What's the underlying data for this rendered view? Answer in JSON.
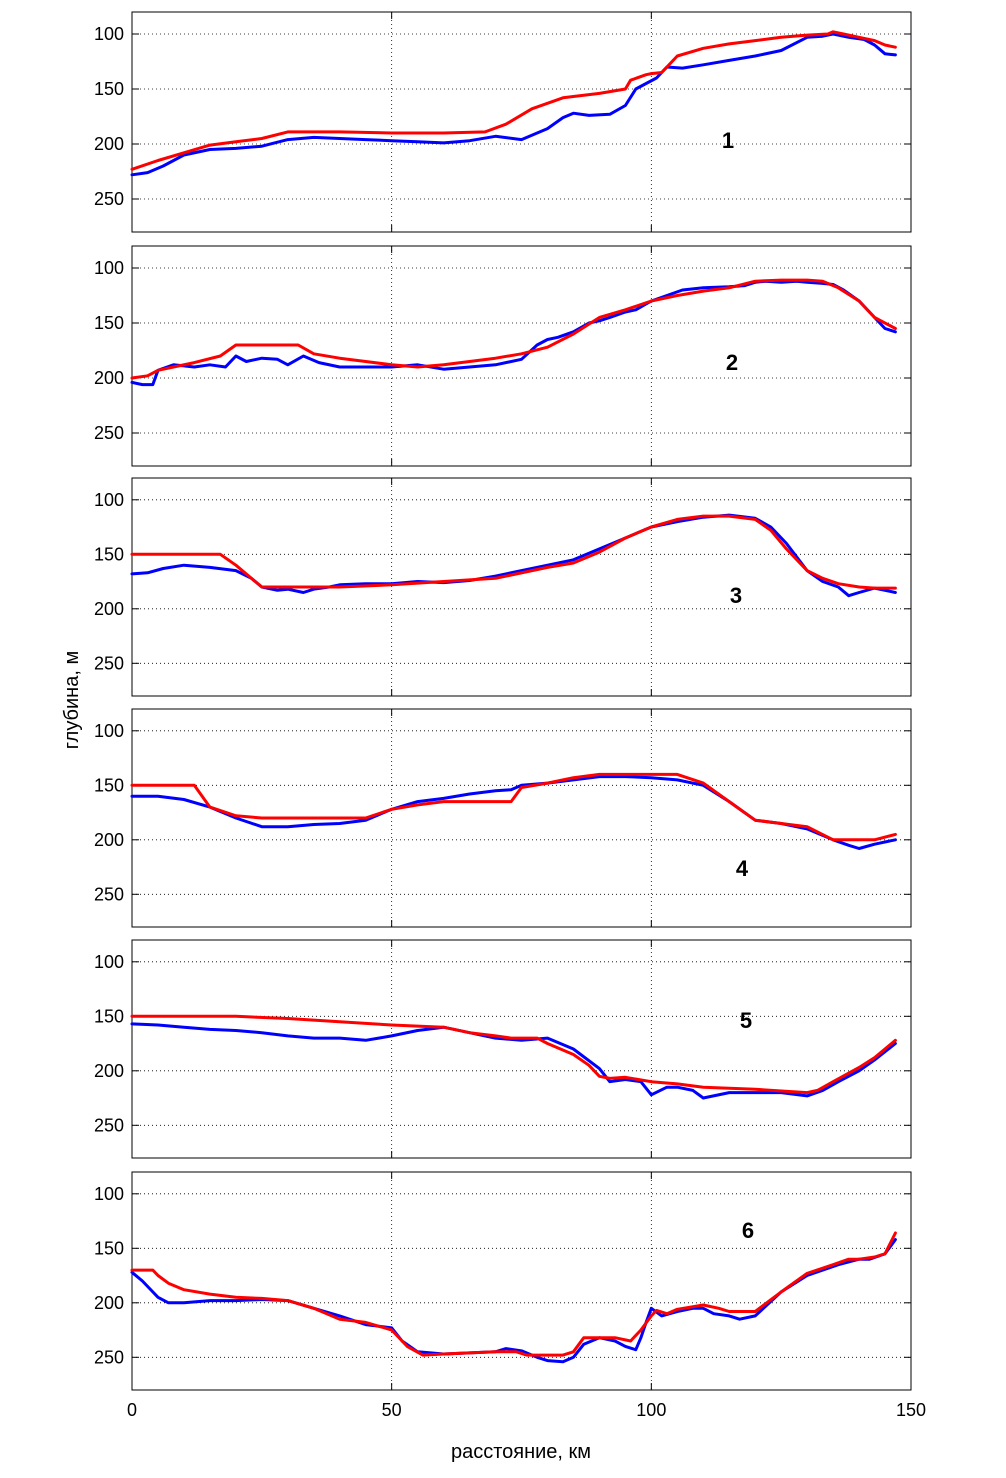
{
  "figure": {
    "xlabel": "расстояние, км",
    "ylabel": "глубина, м",
    "colors": {
      "measured": "#0000ff",
      "model": "#ff0000",
      "grid": "#000000"
    }
  },
  "chart_data": [
    {
      "type": "line",
      "label": "1",
      "xlim": [
        0,
        150
      ],
      "ylim": [
        80,
        280
      ],
      "y_reversed": true,
      "yticks": [
        100,
        150,
        200,
        250
      ],
      "grid": true,
      "series": [
        {
          "color": "#0000ff",
          "x": [
            0,
            3,
            6,
            10,
            15,
            20,
            25,
            30,
            35,
            40,
            45,
            50,
            55,
            60,
            65,
            70,
            75,
            80,
            83,
            85,
            88,
            92,
            95,
            97,
            99,
            101,
            103,
            106,
            110,
            115,
            120,
            125,
            130,
            133,
            135,
            138,
            141,
            143,
            145,
            147
          ],
          "y": [
            228,
            226,
            220,
            210,
            205,
            204,
            202,
            196,
            194,
            195,
            196,
            197,
            198,
            199,
            197,
            193,
            196,
            186,
            176,
            172,
            174,
            173,
            165,
            150,
            145,
            140,
            130,
            131,
            128,
            124,
            120,
            115,
            103,
            102,
            100,
            103,
            105,
            110,
            118,
            119
          ]
        },
        {
          "color": "#ff0000",
          "x": [
            0,
            5,
            10,
            15,
            20,
            25,
            30,
            35,
            40,
            50,
            60,
            68,
            72,
            77,
            83,
            90,
            95,
            96,
            99,
            100,
            102,
            105,
            110,
            115,
            120,
            125,
            130,
            134,
            135,
            137,
            140,
            143,
            145,
            147
          ],
          "y": [
            223,
            215,
            208,
            201,
            198,
            195,
            189,
            189,
            189,
            190,
            190,
            189,
            182,
            168,
            158,
            154,
            150,
            142,
            137,
            136,
            135,
            120,
            113,
            109,
            106,
            103,
            101,
            100,
            98,
            100,
            103,
            106,
            110,
            112
          ]
        }
      ]
    },
    {
      "type": "line",
      "label": "2",
      "xlim": [
        0,
        150
      ],
      "ylim": [
        80,
        280
      ],
      "y_reversed": true,
      "yticks": [
        100,
        150,
        200,
        250
      ],
      "grid": true,
      "series": [
        {
          "color": "#0000ff",
          "x": [
            0,
            2,
            4,
            5,
            8,
            12,
            15,
            18,
            20,
            22,
            25,
            28,
            30,
            33,
            36,
            40,
            45,
            50,
            55,
            60,
            65,
            70,
            75,
            78,
            80,
            82,
            85,
            88,
            90,
            92,
            95,
            97,
            100,
            103,
            106,
            110,
            115,
            118,
            120,
            122,
            125,
            128,
            130,
            133,
            135,
            137,
            140,
            143,
            145,
            147
          ],
          "y": [
            204,
            206,
            206,
            193,
            188,
            190,
            188,
            190,
            180,
            185,
            182,
            183,
            188,
            180,
            186,
            190,
            190,
            190,
            188,
            192,
            190,
            188,
            183,
            170,
            165,
            163,
            158,
            150,
            148,
            145,
            140,
            138,
            130,
            125,
            120,
            118,
            117,
            116,
            113,
            112,
            113,
            112,
            113,
            114,
            115,
            120,
            130,
            145,
            155,
            158
          ]
        },
        {
          "color": "#ff0000",
          "x": [
            0,
            3,
            5,
            8,
            12,
            17,
            20,
            25,
            30,
            32,
            35,
            40,
            45,
            50,
            55,
            60,
            65,
            70,
            75,
            80,
            85,
            90,
            95,
            100,
            105,
            110,
            115,
            120,
            125,
            130,
            133,
            136,
            140,
            143,
            147
          ],
          "y": [
            200,
            198,
            193,
            190,
            186,
            180,
            170,
            170,
            170,
            170,
            178,
            182,
            185,
            188,
            190,
            188,
            185,
            182,
            178,
            172,
            160,
            145,
            138,
            130,
            125,
            121,
            118,
            112,
            111,
            111,
            112,
            118,
            130,
            145,
            155
          ]
        }
      ]
    },
    {
      "type": "line",
      "label": "3",
      "xlim": [
        0,
        150
      ],
      "ylim": [
        80,
        280
      ],
      "y_reversed": true,
      "yticks": [
        100,
        150,
        200,
        250
      ],
      "grid": true,
      "series": [
        {
          "color": "#0000ff",
          "x": [
            0,
            3,
            6,
            10,
            15,
            20,
            23,
            25,
            28,
            30,
            33,
            35,
            38,
            40,
            45,
            50,
            55,
            60,
            65,
            70,
            75,
            80,
            85,
            90,
            95,
            100,
            105,
            110,
            115,
            120,
            123,
            126,
            130,
            133,
            136,
            138,
            140,
            143,
            147
          ],
          "y": [
            168,
            167,
            163,
            160,
            162,
            165,
            172,
            180,
            183,
            182,
            185,
            182,
            180,
            178,
            177,
            177,
            175,
            176,
            174,
            170,
            165,
            160,
            155,
            145,
            135,
            125,
            120,
            116,
            114,
            117,
            125,
            140,
            165,
            175,
            180,
            188,
            185,
            181,
            185
          ]
        },
        {
          "color": "#ff0000",
          "x": [
            0,
            5,
            10,
            15,
            17,
            20,
            25,
            30,
            40,
            50,
            60,
            70,
            80,
            85,
            90,
            95,
            100,
            105,
            110,
            115,
            120,
            123,
            126,
            130,
            133,
            136,
            140,
            143,
            147
          ],
          "y": [
            150,
            150,
            150,
            150,
            150,
            160,
            180,
            180,
            180,
            178,
            175,
            172,
            162,
            158,
            148,
            135,
            125,
            118,
            115,
            115,
            118,
            128,
            145,
            165,
            172,
            177,
            180,
            181,
            181
          ]
        }
      ]
    },
    {
      "type": "line",
      "label": "4",
      "xlim": [
        0,
        150
      ],
      "ylim": [
        80,
        280
      ],
      "y_reversed": true,
      "yticks": [
        100,
        150,
        200,
        250
      ],
      "grid": true,
      "series": [
        {
          "color": "#0000ff",
          "x": [
            0,
            5,
            10,
            15,
            20,
            25,
            30,
            35,
            40,
            45,
            50,
            55,
            60,
            65,
            70,
            73,
            75,
            80,
            85,
            90,
            95,
            100,
            105,
            110,
            115,
            120,
            125,
            130,
            135,
            138,
            140,
            143,
            147
          ],
          "y": [
            160,
            160,
            163,
            170,
            180,
            188,
            188,
            186,
            185,
            182,
            172,
            165,
            162,
            158,
            155,
            154,
            150,
            148,
            145,
            142,
            142,
            143,
            145,
            150,
            165,
            182,
            185,
            190,
            200,
            205,
            208,
            204,
            200
          ]
        },
        {
          "color": "#ff0000",
          "x": [
            0,
            5,
            10,
            12,
            15,
            20,
            25,
            30,
            35,
            40,
            45,
            50,
            55,
            60,
            65,
            70,
            73,
            75,
            80,
            85,
            90,
            95,
            100,
            105,
            110,
            115,
            120,
            125,
            130,
            135,
            140,
            143,
            147
          ],
          "y": [
            150,
            150,
            150,
            150,
            170,
            178,
            180,
            180,
            180,
            180,
            180,
            172,
            168,
            165,
            165,
            165,
            165,
            152,
            148,
            143,
            140,
            140,
            140,
            140,
            148,
            165,
            182,
            185,
            188,
            200,
            200,
            200,
            195
          ]
        }
      ]
    },
    {
      "type": "line",
      "label": "5",
      "xlim": [
        0,
        150
      ],
      "ylim": [
        80,
        280
      ],
      "y_reversed": true,
      "yticks": [
        100,
        150,
        200,
        250
      ],
      "grid": true,
      "series": [
        {
          "color": "#0000ff",
          "x": [
            0,
            5,
            10,
            15,
            20,
            25,
            30,
            35,
            40,
            45,
            50,
            55,
            60,
            65,
            70,
            75,
            80,
            85,
            90,
            92,
            95,
            98,
            100,
            103,
            105,
            108,
            110,
            115,
            120,
            125,
            130,
            133,
            136,
            140,
            143,
            147
          ],
          "y": [
            157,
            158,
            160,
            162,
            163,
            165,
            168,
            170,
            170,
            172,
            168,
            163,
            160,
            165,
            170,
            172,
            170,
            180,
            198,
            210,
            208,
            210,
            222,
            215,
            215,
            218,
            225,
            220,
            220,
            220,
            223,
            218,
            210,
            200,
            190,
            175
          ]
        },
        {
          "color": "#ff0000",
          "x": [
            0,
            10,
            20,
            30,
            40,
            50,
            60,
            65,
            70,
            73,
            78,
            80,
            85,
            88,
            90,
            92,
            95,
            100,
            105,
            110,
            120,
            130,
            132,
            135,
            140,
            143,
            147
          ],
          "y": [
            150,
            150,
            150,
            152,
            155,
            158,
            160,
            165,
            168,
            170,
            170,
            175,
            185,
            195,
            205,
            207,
            206,
            210,
            212,
            215,
            217,
            220,
            218,
            210,
            197,
            188,
            172
          ]
        }
      ]
    },
    {
      "type": "line",
      "label": "6",
      "xlim": [
        0,
        150
      ],
      "ylim": [
        80,
        280
      ],
      "y_reversed": true,
      "yticks": [
        100,
        150,
        200,
        250
      ],
      "grid": true,
      "series": [
        {
          "color": "#0000ff",
          "x": [
            0,
            2,
            4,
            5,
            7,
            10,
            15,
            20,
            25,
            30,
            35,
            40,
            45,
            50,
            52,
            55,
            60,
            65,
            70,
            72,
            75,
            78,
            80,
            83,
            85,
            87,
            90,
            93,
            95,
            97,
            98,
            99,
            100,
            102,
            105,
            108,
            110,
            112,
            115,
            117,
            120,
            125,
            130,
            133,
            136,
            140,
            142,
            145,
            147
          ],
          "y": [
            172,
            180,
            190,
            195,
            200,
            200,
            198,
            198,
            197,
            198,
            205,
            212,
            220,
            223,
            235,
            245,
            247,
            246,
            245,
            242,
            244,
            250,
            253,
            254,
            250,
            238,
            232,
            235,
            240,
            243,
            232,
            218,
            205,
            212,
            208,
            205,
            205,
            210,
            212,
            215,
            212,
            190,
            175,
            170,
            165,
            160,
            160,
            155,
            142
          ]
        },
        {
          "color": "#ff0000",
          "x": [
            0,
            2,
            4,
            5,
            7,
            10,
            15,
            20,
            25,
            30,
            35,
            40,
            45,
            50,
            53,
            56,
            60,
            65,
            70,
            74,
            76,
            80,
            83,
            85,
            87,
            90,
            93,
            96,
            98,
            100,
            101,
            103,
            105,
            110,
            113,
            115,
            117,
            120,
            125,
            130,
            135,
            138,
            140,
            143,
            145,
            147
          ],
          "y": [
            170,
            170,
            170,
            175,
            182,
            188,
            192,
            195,
            196,
            198,
            205,
            215,
            218,
            225,
            240,
            248,
            247,
            246,
            245,
            245,
            248,
            248,
            248,
            245,
            232,
            232,
            232,
            235,
            225,
            212,
            207,
            210,
            206,
            202,
            205,
            208,
            208,
            208,
            190,
            173,
            165,
            160,
            160,
            158,
            155,
            136
          ]
        }
      ]
    }
  ]
}
